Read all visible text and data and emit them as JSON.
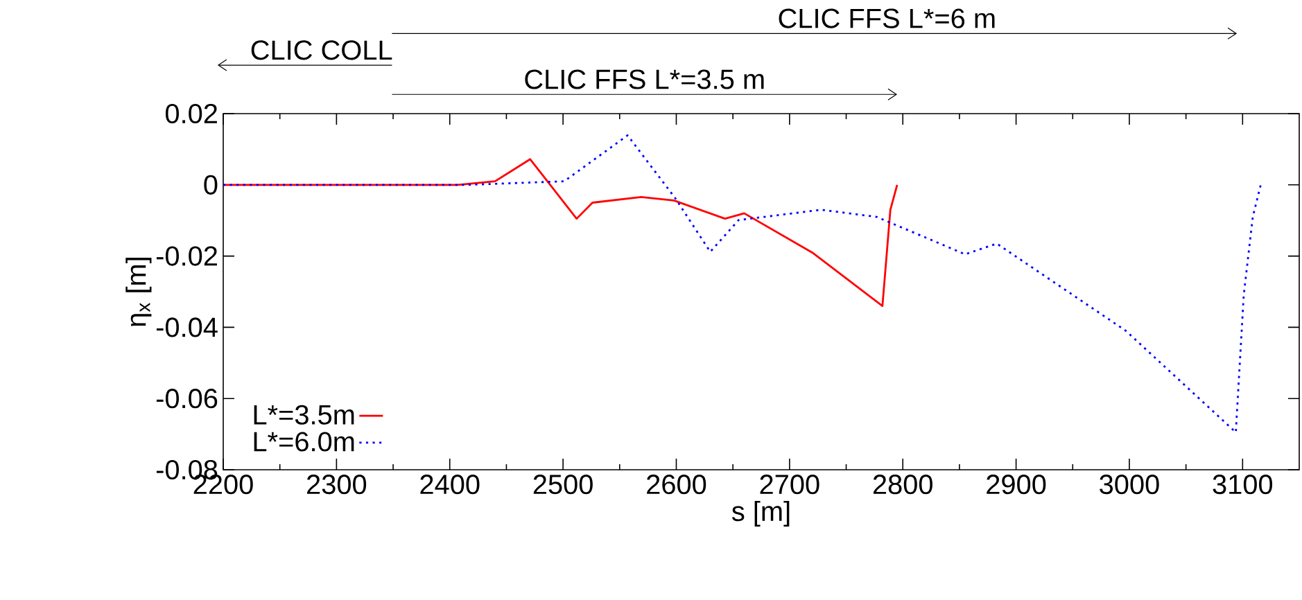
{
  "chart_data": {
    "type": "line",
    "xlabel": "s [m]",
    "ylabel": "η$_{x}$ [m]",
    "xlim": [
      2200,
      3150
    ],
    "xticks": [
      2200,
      2300,
      2400,
      2500,
      2600,
      2700,
      2800,
      2900,
      3000,
      3100
    ],
    "ylim": [
      -0.08,
      0.02
    ],
    "yticks": [
      -0.08,
      -0.06,
      -0.04,
      -0.02,
      0,
      0.02
    ],
    "grid": false,
    "legend": "bottom left",
    "marker": "none",
    "annotations": [
      "CLIC FFS L*=6 m",
      "CLIC COLL",
      "CLIC FFS L*=3.5 m"
    ],
    "series": [
      {
        "name": "L*=3.5m",
        "color": "#ff0000",
        "line_style": "solid",
        "x": [
          2200,
          2407,
          2440,
          2471,
          2512,
          2526,
          2569,
          2598,
          2643,
          2660,
          2720,
          2782,
          2789,
          2795
        ],
        "values": [
          0,
          0,
          0.001,
          0.0072,
          -0.0095,
          -0.005,
          -0.0034,
          -0.0044,
          -0.0095,
          -0.008,
          -0.019,
          -0.034,
          -0.007,
          0
        ]
      },
      {
        "name": "L*=6.0m",
        "color": "#0000ff",
        "line_style": "dotted",
        "x": [
          2200,
          2415,
          2501,
          2557,
          2599,
          2630,
          2655,
          2728,
          2777,
          2855,
          2883,
          2997,
          3094,
          3101,
          3109,
          3116
        ],
        "values": [
          0,
          0,
          0.001,
          0.0139,
          -0.0037,
          -0.0188,
          -0.0099,
          -0.007,
          -0.009,
          -0.0195,
          -0.0165,
          -0.041,
          -0.0695,
          -0.031,
          -0.009,
          0
        ]
      }
    ]
  }
}
